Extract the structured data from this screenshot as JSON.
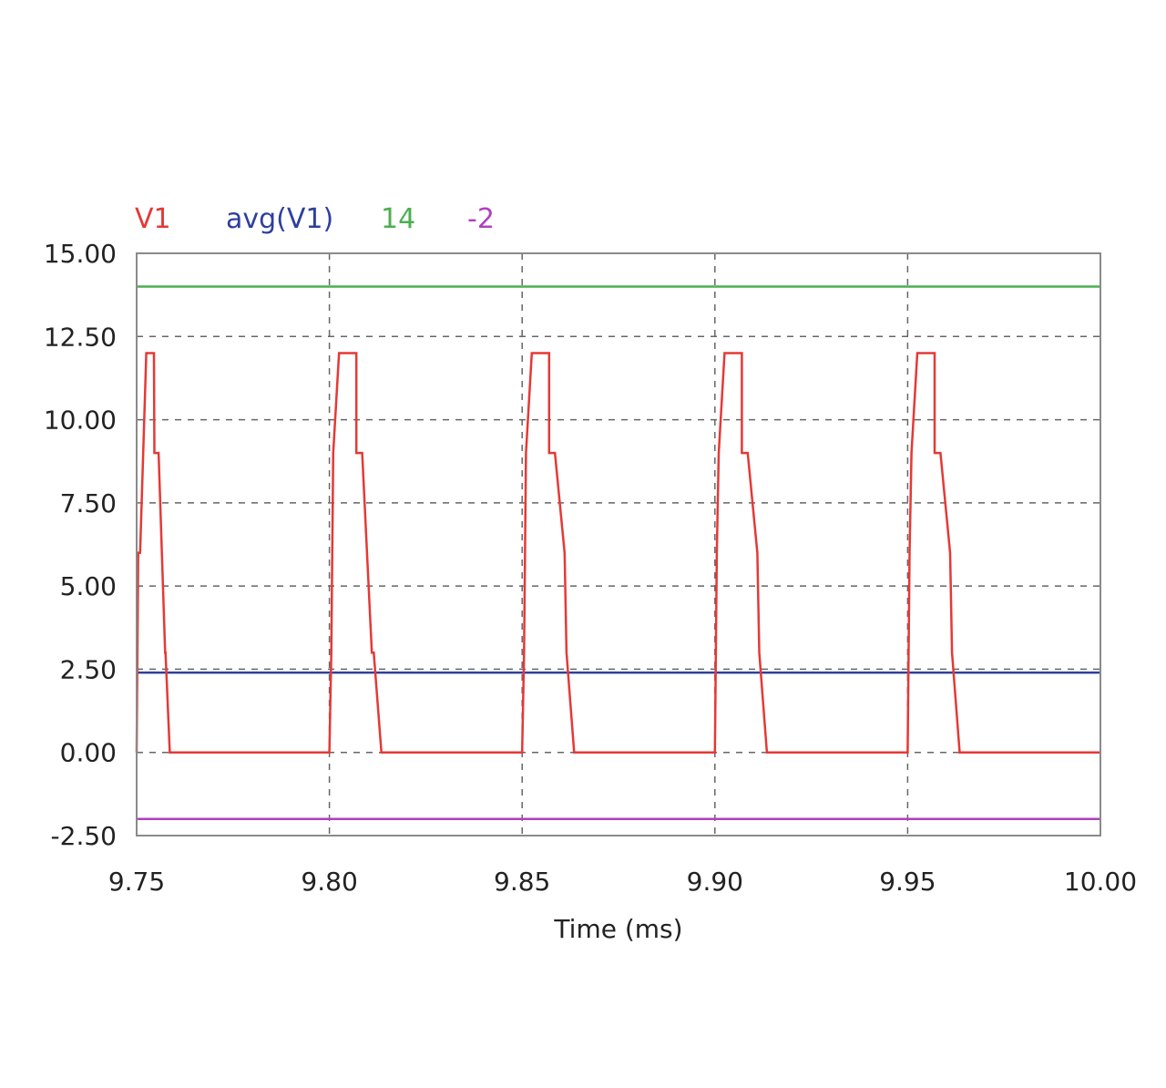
{
  "chart_data": {
    "type": "line",
    "title": "",
    "xlabel": "Time (ms)",
    "ylabel": "",
    "xlim": [
      9.75,
      10.0
    ],
    "ylim": [
      -2.5,
      15.0
    ],
    "grid": true,
    "legend_position": "top-left",
    "x_ticks": [
      "9.75",
      "9.80",
      "9.85",
      "9.90",
      "9.95",
      "10.00"
    ],
    "y_ticks": [
      "15.00",
      "12.50",
      "10.00",
      "7.50",
      "5.00",
      "2.50",
      "0.00",
      "-2.50"
    ],
    "series": [
      {
        "name": "V1",
        "color": "#e53935",
        "x": [
          9.75,
          9.7504,
          9.7509,
          9.7525,
          9.7545,
          9.7546,
          9.7557,
          9.7574,
          9.7575,
          9.7586,
          9.763,
          9.8,
          9.8005,
          9.801,
          9.8025,
          9.807,
          9.807,
          9.8085,
          9.811,
          9.8115,
          9.8135,
          9.85,
          9.8505,
          9.851,
          9.8525,
          9.857,
          9.857,
          9.8585,
          9.861,
          9.8615,
          9.8635,
          9.9,
          9.9005,
          9.901,
          9.9025,
          9.907,
          9.907,
          9.9085,
          9.911,
          9.9115,
          9.9135,
          9.95,
          9.9505,
          9.951,
          9.9525,
          9.957,
          9.957,
          9.9585,
          9.961,
          9.9615,
          9.9635,
          10.0
        ],
        "y": [
          0.0,
          6.0,
          6.0,
          12.0,
          12.0,
          9.0,
          9.0,
          3.0,
          3.0,
          0.0,
          0.0,
          0.0,
          3.0,
          9.0,
          12.0,
          12.0,
          9.0,
          9.0,
          3.0,
          3.0,
          0.0,
          0.0,
          3.0,
          9.0,
          12.0,
          12.0,
          9.0,
          9.0,
          6.0,
          3.0,
          0.0,
          0.0,
          6.0,
          9.0,
          12.0,
          12.0,
          9.0,
          9.0,
          6.0,
          3.0,
          0.0,
          0.0,
          6.0,
          9.0,
          12.0,
          12.0,
          9.0,
          9.0,
          6.0,
          3.0,
          0.0,
          0.0
        ]
      },
      {
        "name": "avg(V1)",
        "color": "#2e3f9e",
        "x": [
          9.75,
          10.0
        ],
        "y": [
          2.4,
          2.4
        ]
      },
      {
        "name": "14",
        "color": "#4caf50",
        "x": [
          9.75,
          10.0
        ],
        "y": [
          14.0,
          14.0
        ]
      },
      {
        "name": "-2",
        "color": "#b040c0",
        "x": [
          9.75,
          10.0
        ],
        "y": [
          -2.0,
          -2.0
        ]
      }
    ]
  }
}
